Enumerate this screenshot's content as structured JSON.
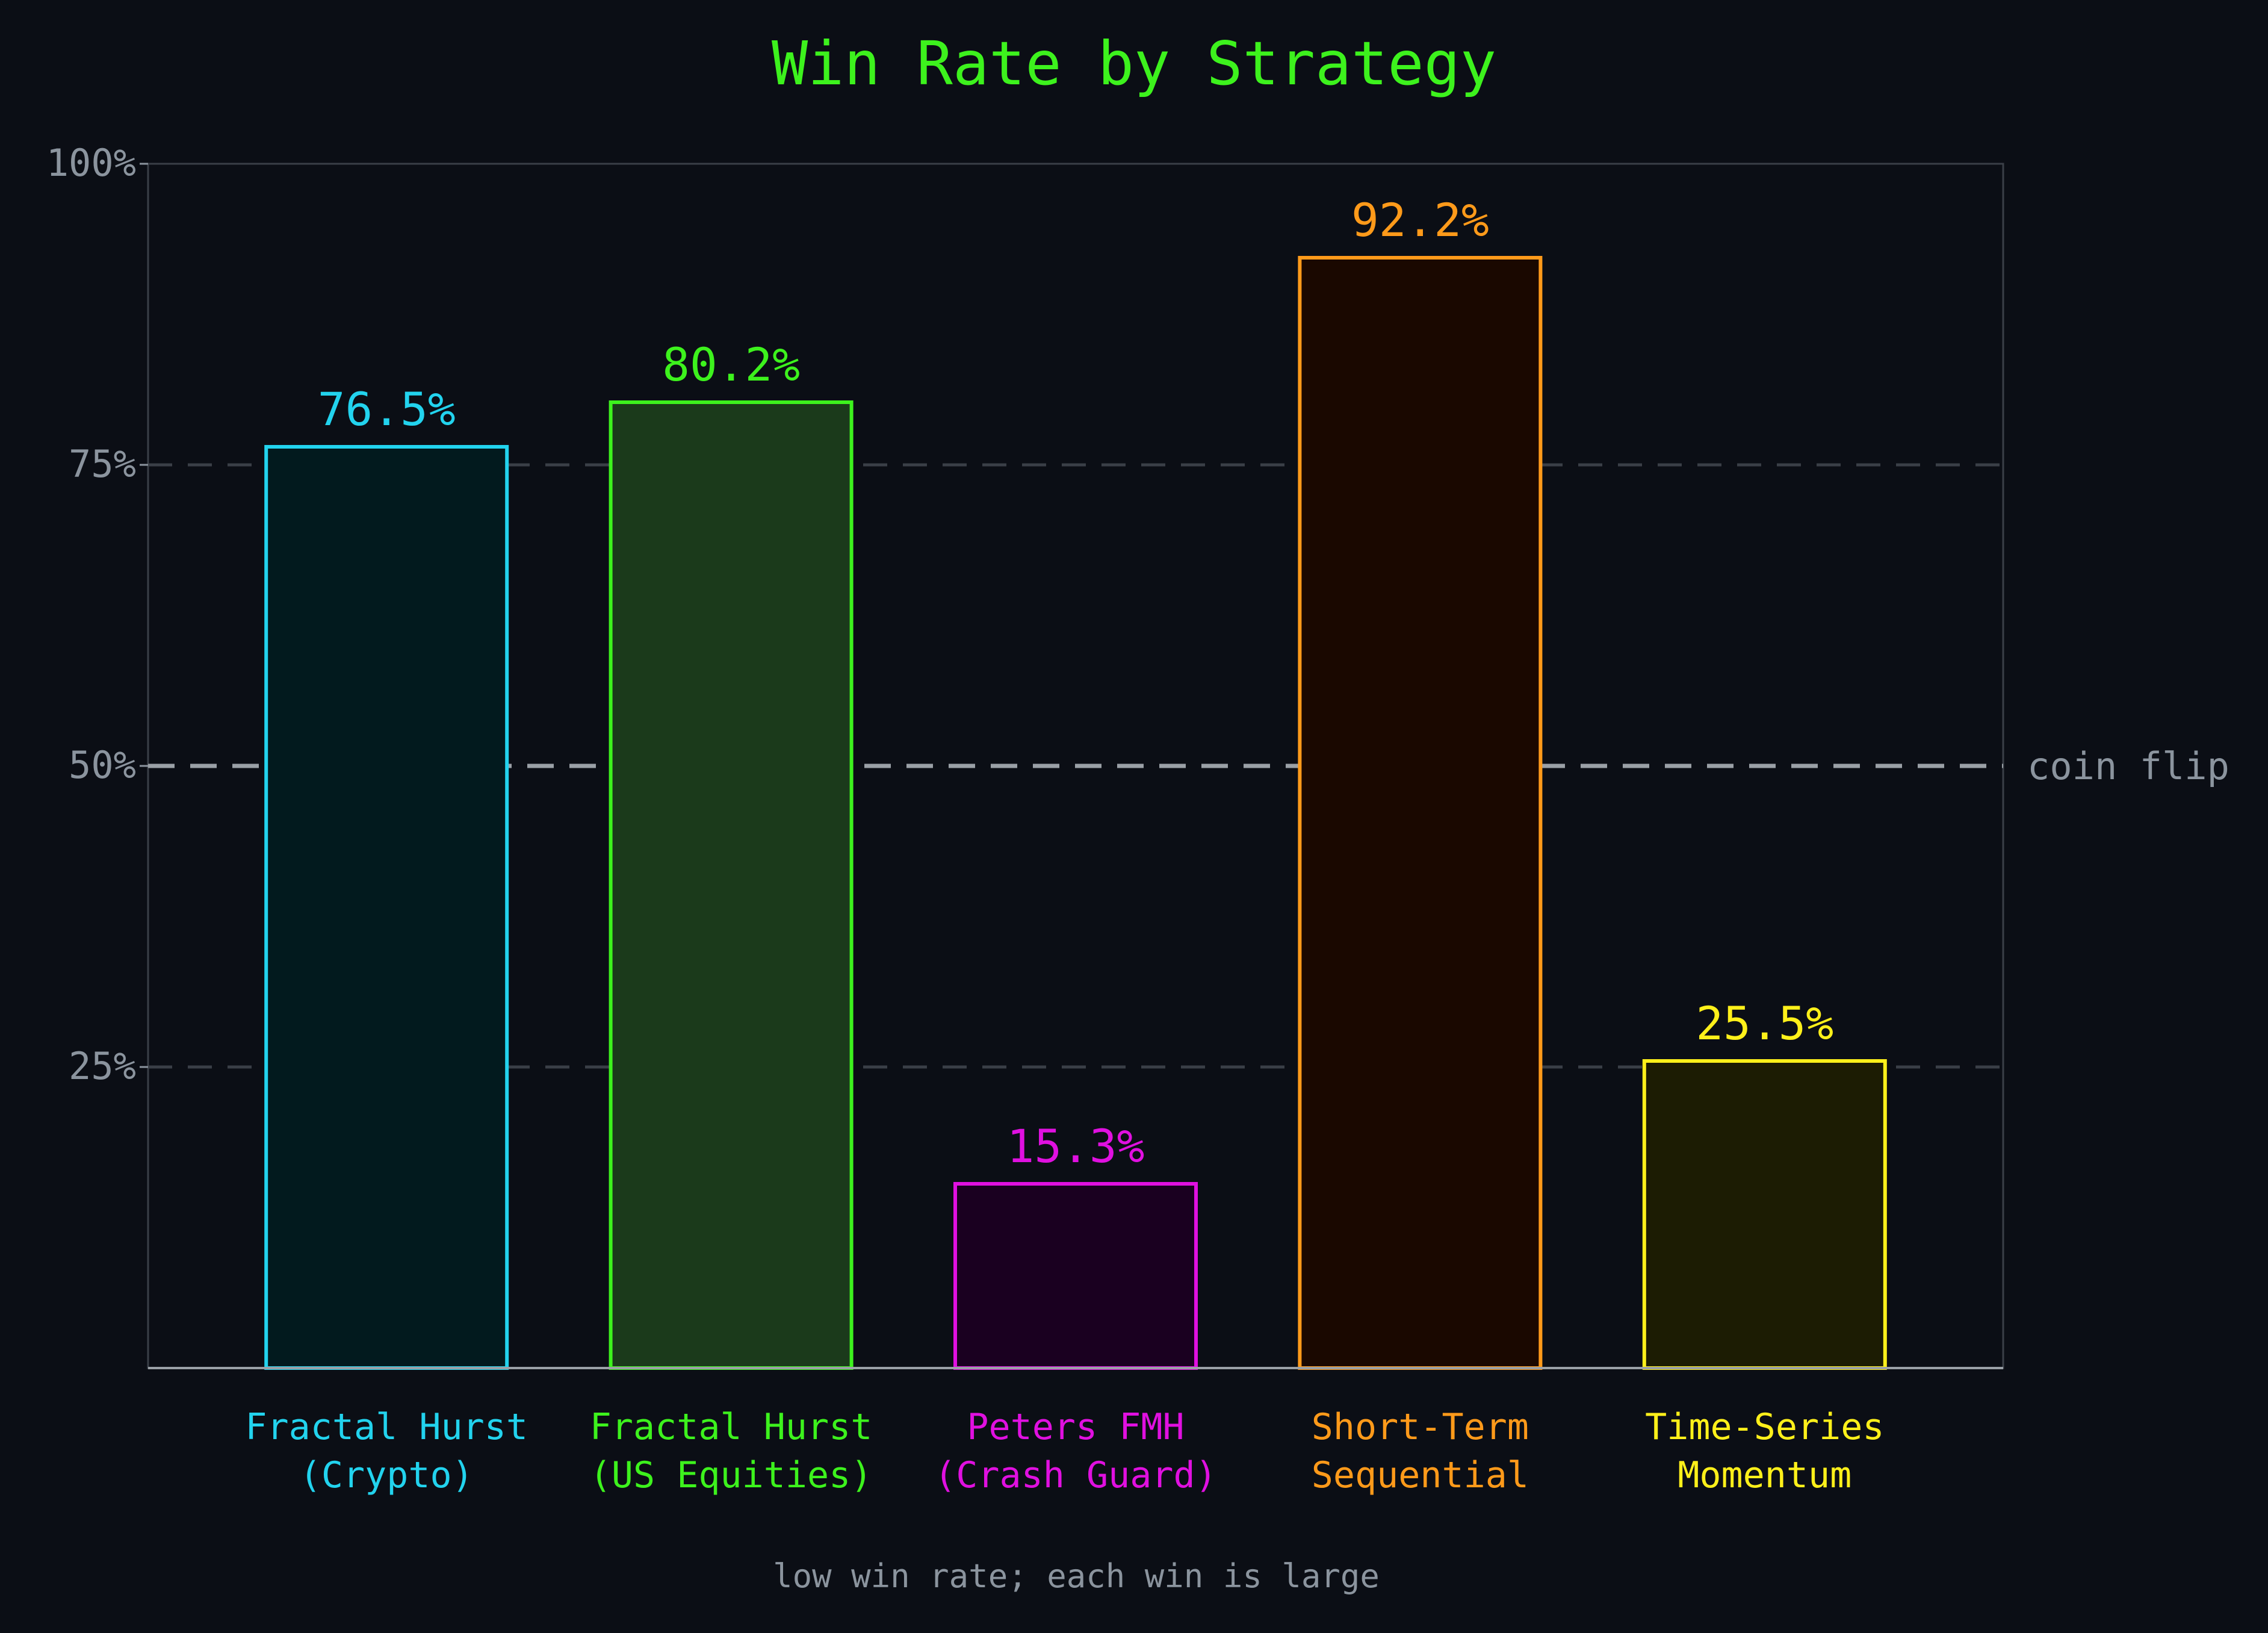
{
  "chart_data": {
    "type": "bar",
    "title": "Win Rate by Strategy",
    "title_color": "#3df21d",
    "categories": [
      [
        "Fractal Hurst",
        "(Crypto)"
      ],
      [
        "Fractal Hurst",
        "(US Equities)"
      ],
      [
        "Peters FMH",
        "(Crash Guard)"
      ],
      [
        "Short-Term",
        "Sequential"
      ],
      [
        "Time-Series",
        "Momentum"
      ]
    ],
    "values": [
      76.5,
      80.2,
      15.3,
      92.2,
      25.5
    ],
    "value_labels": [
      "76.5%",
      "80.2%",
      "15.3%",
      "92.2%",
      "25.5%"
    ],
    "colors": [
      "#22d3ee",
      "#3df21d",
      "#e010e0",
      "#ff9a1a",
      "#fff01a"
    ],
    "fill_colors": [
      "#021a1e",
      "#1b3a1b",
      "#1a0020",
      "#1a0800",
      "#1c1c03"
    ],
    "ylim": [
      0,
      100
    ],
    "yticks": [
      25,
      50,
      75,
      100
    ],
    "ytick_labels": [
      "25%",
      "50%",
      "75%",
      "100%"
    ],
    "grid": true,
    "reference_line": {
      "value": 50,
      "label": "coin flip"
    },
    "annotation": "low win rate; each win is large",
    "xlabel": "",
    "ylabel": ""
  }
}
